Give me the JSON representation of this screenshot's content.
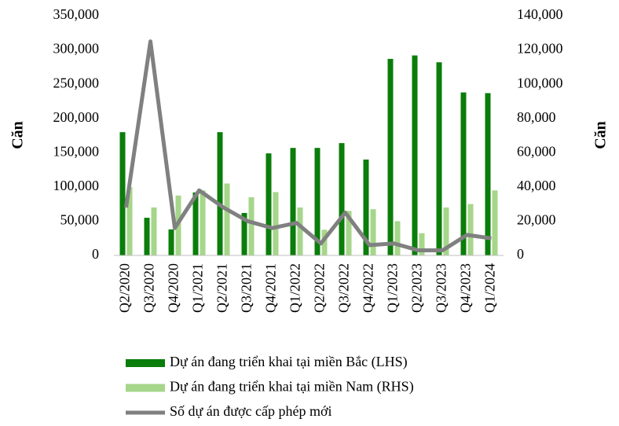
{
  "chart_data": {
    "type": "bar",
    "y_label": "Căn",
    "y2_label": "Căn",
    "categories": [
      "Q2/2020",
      "Q3/2020",
      "Q4/2020",
      "Q1/2021",
      "Q2/2021",
      "Q3/2021",
      "Q4/2021",
      "Q1/2022",
      "Q2/2022",
      "Q3/2022",
      "Q4/2022",
      "Q1/2023",
      "Q2/2023",
      "Q3/2023",
      "Q4/2023",
      "Q1/2024"
    ],
    "series": [
      {
        "name": "Dự án đang triển khai tại miền Bắc (LHS)",
        "type": "bar",
        "color": "#0a7d0a",
        "axis": "y",
        "values": [
          180000,
          55000,
          38000,
          92000,
          180000,
          62000,
          149000,
          157000,
          157000,
          164000,
          140000,
          287000,
          292000,
          282000,
          238000,
          237000
        ]
      },
      {
        "name": "Dự án đang triển khai tại miền Nam (RHS)",
        "type": "bar",
        "color": "#a6d68a",
        "axis": "y2",
        "values": [
          40000,
          28000,
          35000,
          38000,
          42000,
          34000,
          37000,
          28000,
          15000,
          26000,
          27000,
          20000,
          13000,
          28000,
          30000,
          38000
        ]
      },
      {
        "name": "Số dự án được cấp phép mới",
        "type": "line",
        "color": "#808080",
        "axis": "y2",
        "values": [
          28000,
          125000,
          16000,
          38000,
          28000,
          20000,
          16000,
          19000,
          7000,
          25000,
          6000,
          7000,
          3000,
          3000,
          12000,
          10000
        ]
      }
    ],
    "ylim": [
      0,
      350000
    ],
    "yticks": [
      0,
      {
        "value": 50000,
        "label": "50,000"
      },
      {
        "value": 100000,
        "label": "100,000"
      },
      {
        "value": 150000,
        "label": "150,000"
      },
      {
        "value": 200000,
        "label": "200,000"
      },
      {
        "value": 250000,
        "label": "250,000"
      },
      {
        "value": 300000,
        "label": "300,000"
      },
      {
        "value": 350000,
        "label": "350,000"
      }
    ],
    "y2lim": [
      0,
      140000
    ],
    "y2ticks": [
      0,
      {
        "value": 20000,
        "label": "20,000"
      },
      {
        "value": 40000,
        "label": "40,000"
      },
      {
        "value": 60000,
        "label": "60,000"
      },
      {
        "value": 80000,
        "label": "80,000"
      },
      {
        "value": 100000,
        "label": "100,000"
      },
      {
        "value": 120000,
        "label": "120,000"
      },
      {
        "value": 140000,
        "label": "140,000"
      }
    ],
    "grid": false,
    "legend": "bottom"
  }
}
